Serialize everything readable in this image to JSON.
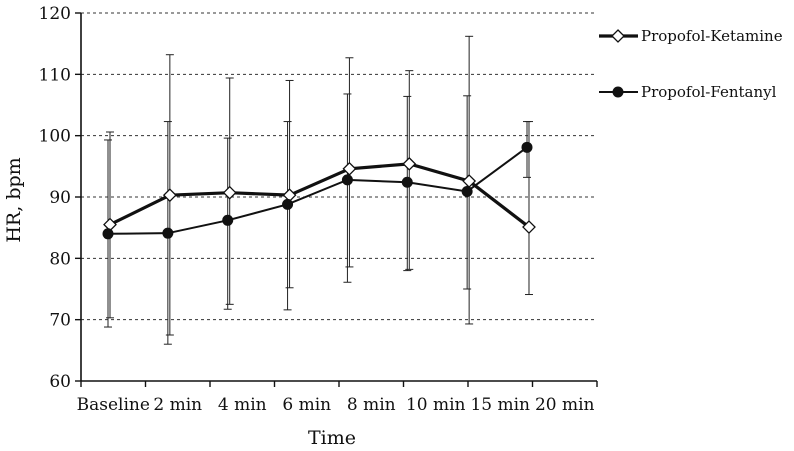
{
  "chart_data": {
    "type": "line",
    "categories": [
      "Baseline",
      "2 min",
      "4 min",
      "6 min",
      "8 min",
      "10 min",
      "15 min",
      "20 min"
    ],
    "xlabel": "Time",
    "ylabel": "HR, bpm",
    "ylim": [
      60,
      120
    ],
    "yticks": [
      "60",
      "70",
      "80",
      "90",
      "100",
      "110",
      "120"
    ],
    "grid": "horizontal dashed",
    "legend": "top-right",
    "series": [
      {
        "name": "Propofol-Ketamine",
        "marker": "open-diamond",
        "color": "#111111",
        "values": [
          85.5,
          90.3,
          90.7,
          90.3,
          94.6,
          95.4,
          92.6,
          85.1
        ],
        "err_upper": [
          100.6,
          113.2,
          109.4,
          109.0,
          112.7,
          110.6,
          116.2,
          102.3
        ],
        "err_lower": [
          70.3,
          67.5,
          72.5,
          75.2,
          78.6,
          78.2,
          69.3,
          74.1
        ]
      },
      {
        "name": "Propofol-Fentanyl",
        "marker": "filled-circle",
        "color": "#111111",
        "values": [
          84.0,
          84.1,
          86.2,
          88.8,
          92.8,
          92.4,
          90.9,
          98.1
        ],
        "err_upper": [
          99.3,
          102.3,
          99.6,
          102.3,
          106.8,
          106.4,
          106.5,
          102.3
        ],
        "err_lower": [
          68.8,
          66.0,
          71.7,
          71.6,
          76.1,
          78.0,
          75.0,
          93.2
        ]
      }
    ]
  }
}
